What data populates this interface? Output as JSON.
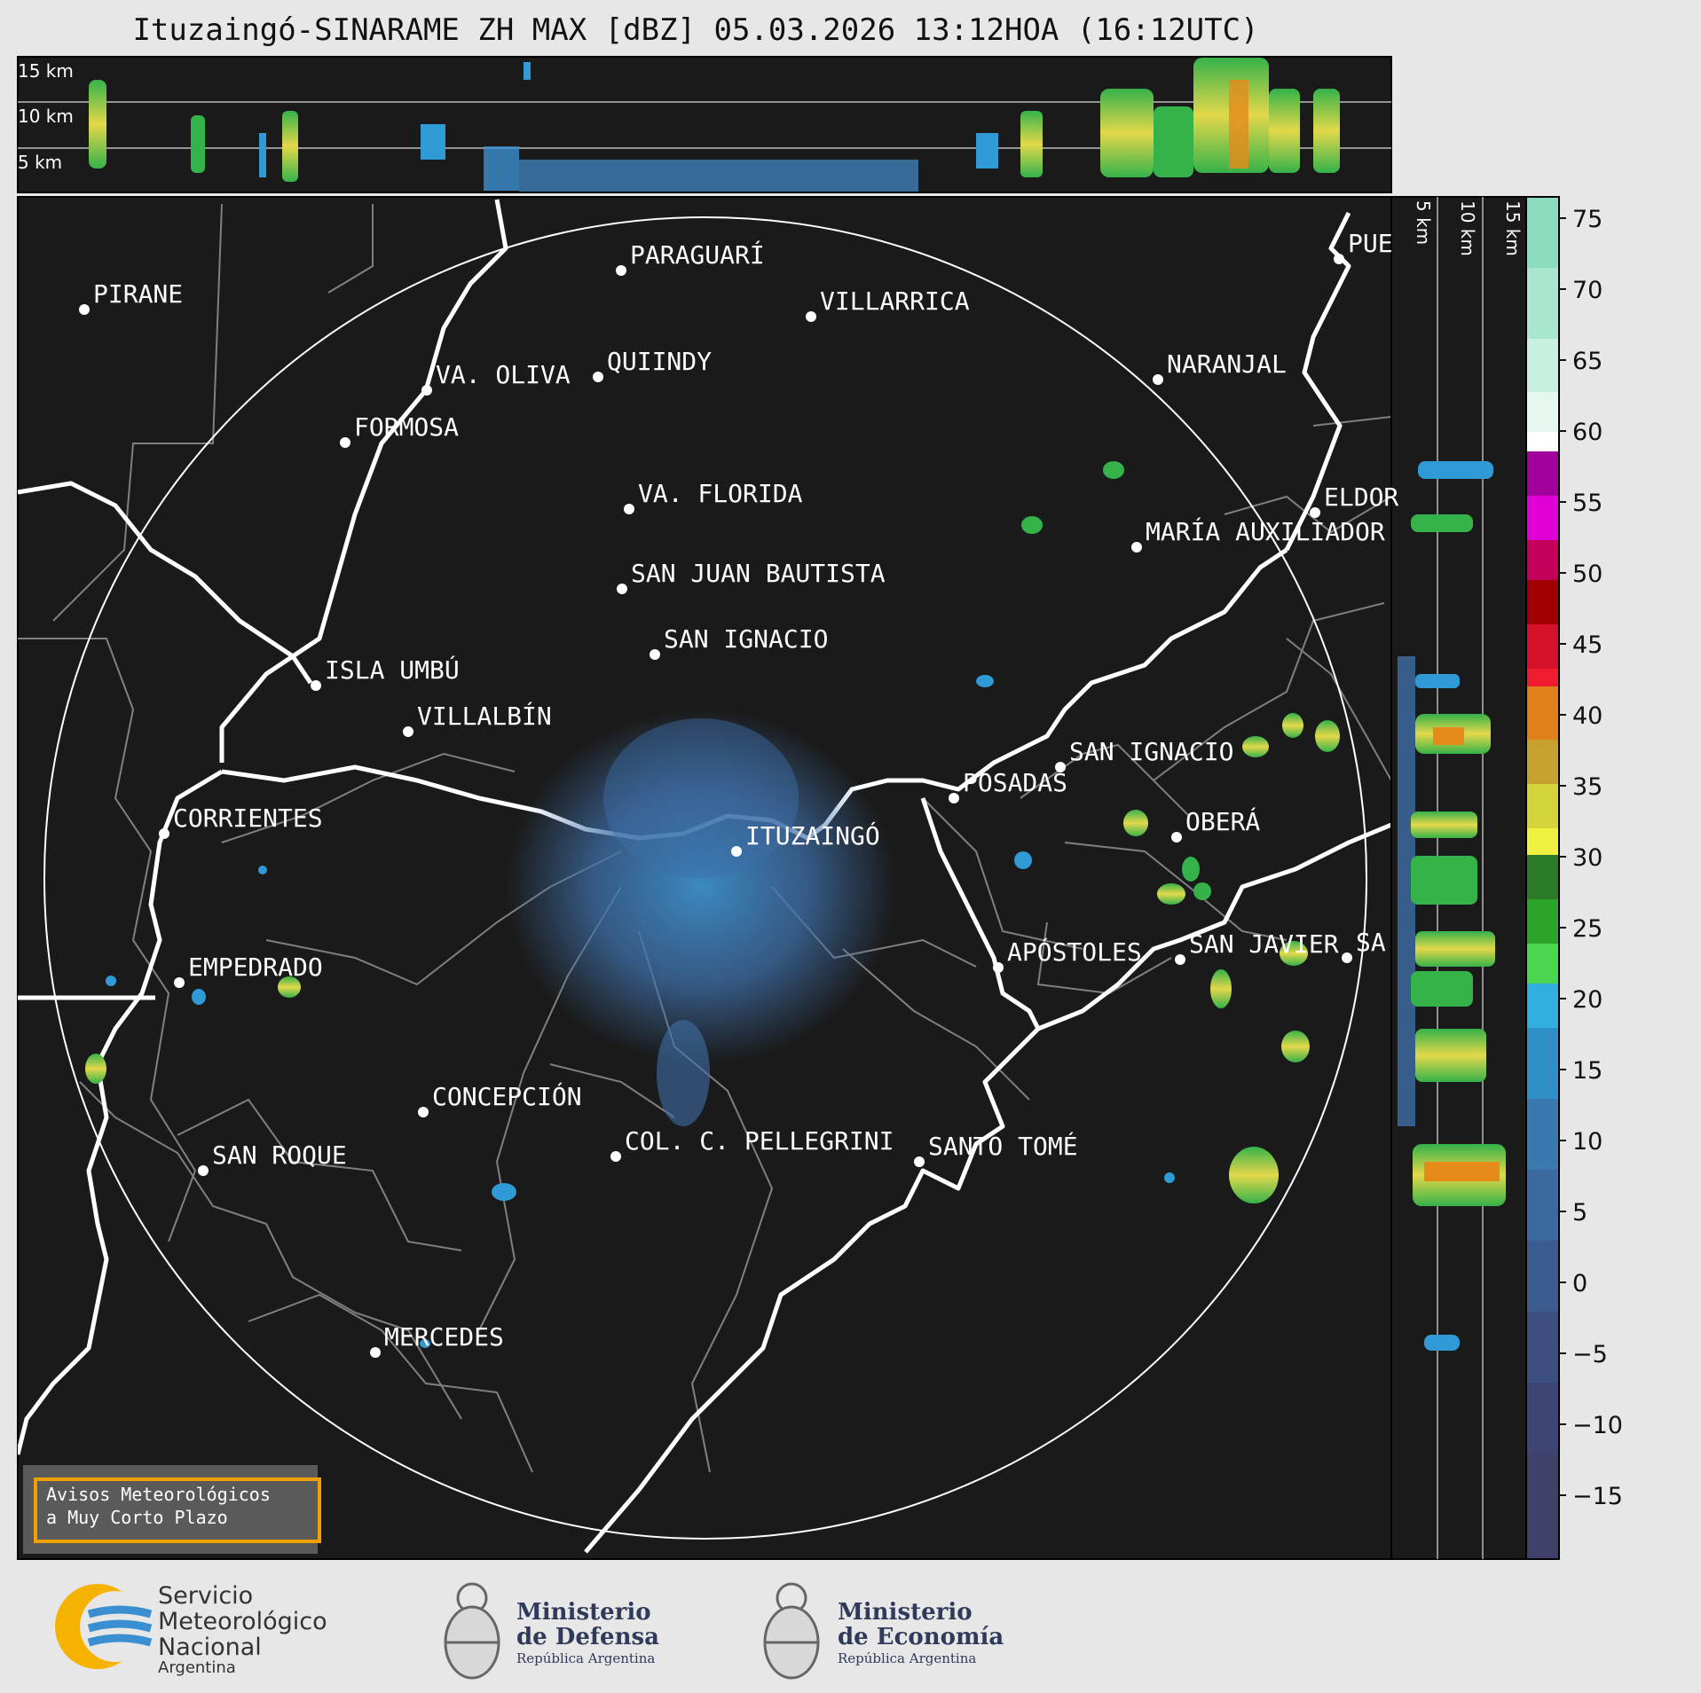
{
  "title": "Ituzaingó-SINARAME ZH MAX [dBZ] 05.03.2026 13:12HOA (16:12UTC)",
  "top_profile": {
    "height_labels": [
      "15 km",
      "10 km",
      "5 km"
    ]
  },
  "side_profile": {
    "height_labels": [
      "5 km",
      "10 km",
      "15 km"
    ]
  },
  "colorbar": {
    "ticks": [
      "75",
      "70",
      "65",
      "60",
      "55",
      "50",
      "45",
      "40",
      "35",
      "30",
      "25",
      "20",
      "15",
      "10",
      "5",
      "0",
      "−5",
      "−10",
      "−15"
    ],
    "min": -20,
    "max": 77
  },
  "cities": [
    {
      "name": "PARAGUARÍ"
    },
    {
      "name": "VILLARRICA"
    },
    {
      "name": "PIRANE"
    },
    {
      "name": "QUIINDY"
    },
    {
      "name": "VA. OLIVA"
    },
    {
      "name": "NARANJAL"
    },
    {
      "name": "FORMOSA"
    },
    {
      "name": "VA. FLORIDA"
    },
    {
      "name": "ELDOR"
    },
    {
      "name": "MARÍA AUXILIADOR"
    },
    {
      "name": "SAN JUAN BAUTISTA"
    },
    {
      "name": "SAN IGNACIO"
    },
    {
      "name": "ISLA UMBÚ"
    },
    {
      "name": "VILLALBÍN"
    },
    {
      "name": "SAN IGNACIO"
    },
    {
      "name": "POSADAS"
    },
    {
      "name": "CORRIENTES"
    },
    {
      "name": "ITUZAINGÓ"
    },
    {
      "name": "OBERÁ"
    },
    {
      "name": "APÓSTOLES"
    },
    {
      "name": "SAN JAVIER"
    },
    {
      "name": "SA"
    },
    {
      "name": "EMPEDRADO"
    },
    {
      "name": "CONCEPCIÓN"
    },
    {
      "name": "COL. C. PELLEGRINI"
    },
    {
      "name": "SANTO TOMÉ"
    },
    {
      "name": "SAN ROQUE"
    },
    {
      "name": "MERCEDES"
    },
    {
      "name": "PUE"
    }
  ],
  "warning": {
    "line1": "Avisos Meteorológicos",
    "line2": "a Muy Corto Plazo"
  },
  "logos": {
    "smn": {
      "line1": "Servicio",
      "line2": "Meteorológico",
      "line3": "Nacional",
      "line4": "Argentina"
    },
    "defensa": {
      "line1": "Ministerio",
      "line2": "de Defensa",
      "line3": "República Argentina"
    },
    "economia": {
      "line1": "Ministerio",
      "line2": "de Economía",
      "line3": "República Argentina"
    }
  }
}
